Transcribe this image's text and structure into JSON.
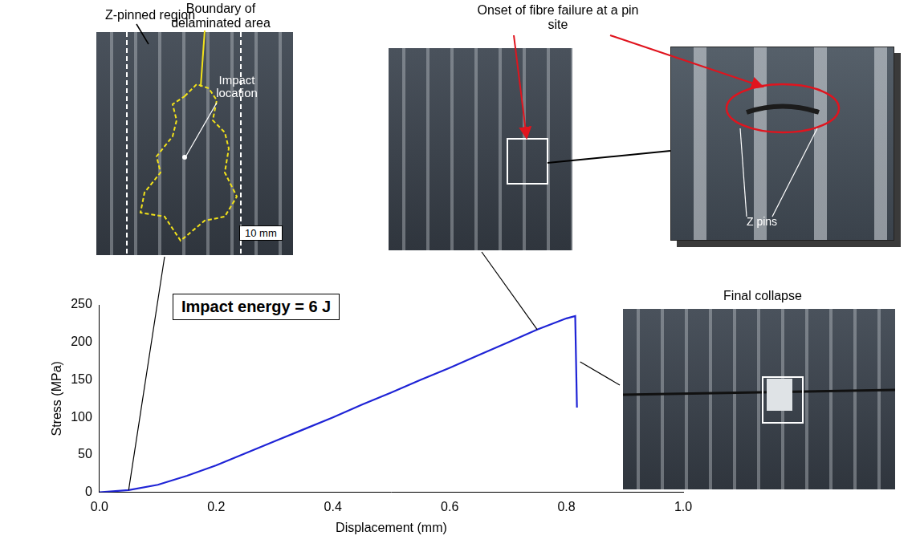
{
  "chart_data": {
    "type": "line",
    "x_label": "Displacement (mm)",
    "y_label": "Stress (MPa)",
    "annotations": [
      "Impact energy = 6 J"
    ],
    "x": [
      0,
      0.05,
      0.1,
      0.15,
      0.2,
      0.25,
      0.3,
      0.35,
      0.4,
      0.45,
      0.5,
      0.55,
      0.6,
      0.65,
      0.7,
      0.75,
      0.8,
      0.815,
      0.818
    ],
    "values": [
      0,
      3,
      10,
      22,
      36,
      52,
      68,
      84,
      100,
      117,
      133,
      150,
      166,
      183,
      200,
      217,
      232,
      235,
      113
    ],
    "color": "#1f24d6",
    "xlim": [
      0,
      1
    ],
    "xticks": [
      {
        "value": 0,
        "label": "0.0"
      },
      0.2,
      0.4,
      0.6,
      0.8,
      {
        "value": 1,
        "label": "1.0"
      }
    ],
    "ylim": [
      0,
      250
    ],
    "yticks": [
      0,
      50,
      100,
      150,
      200,
      250
    ],
    "grid": false
  },
  "photo_labels": {
    "z_pinned_region": "Z-pinned region",
    "delamination_boundary": "Boundary of delaminated area",
    "impact_location": "Impact location",
    "scale_bar": "10 mm",
    "fibre_failure": "Onset of fibre failure at a pin site",
    "z_pins": "Z pins",
    "final_collapse": "Final collapse"
  }
}
